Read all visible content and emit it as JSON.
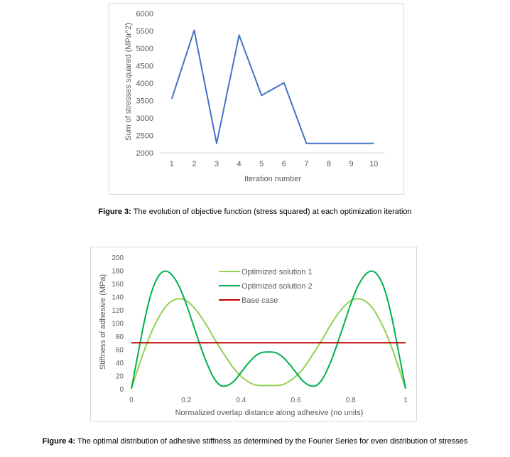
{
  "figure3": {
    "caption_label": "Figure 3:",
    "caption_text": " The evolution of objective function (stress squared) at each optimization iteration",
    "chart_data": {
      "type": "line",
      "title": "",
      "xlabel": "Iteration number",
      "ylabel": "Sum of stresses squared (MPa^2)",
      "categories": [
        "1",
        "2",
        "3",
        "4",
        "5",
        "6",
        "7",
        "8",
        "9",
        "10"
      ],
      "x": [
        1,
        2,
        3,
        4,
        5,
        6,
        7,
        8,
        9,
        10
      ],
      "values": [
        3550,
        5520,
        2270,
        5380,
        3650,
        4010,
        2270,
        2270,
        2270,
        2270
      ],
      "ylim": [
        2000,
        6000
      ],
      "yticks": [
        "2000",
        "2500",
        "3000",
        "3500",
        "4000",
        "4500",
        "5000",
        "5500",
        "6000"
      ],
      "grid": false,
      "color": "#4472c4"
    }
  },
  "figure4": {
    "caption_label": "Figure 4:",
    "caption_text": " The optimal distribution of adhesive stiffness as determined by the Fourier Series for even distribution of stresses",
    "chart_data": {
      "type": "line",
      "title": "",
      "xlabel": "Normalized overlap distance along adhesive (no units)",
      "ylabel": "Stiffness of adhesive (MPa)",
      "xlim": [
        0,
        1
      ],
      "ylim": [
        0,
        200
      ],
      "xticks": [
        "0",
        "0.2",
        "0.4",
        "0.6",
        "0.8",
        "1"
      ],
      "yticks": [
        "0",
        "20",
        "40",
        "60",
        "80",
        "100",
        "120",
        "140",
        "160",
        "180",
        "200"
      ],
      "legend_position": "top-right",
      "grid": false,
      "series": [
        {
          "name": "Optimized solution 1",
          "color": "#92d050",
          "x": [
            0,
            0.025,
            0.05,
            0.075,
            0.1,
            0.125,
            0.15,
            0.175,
            0.2,
            0.225,
            0.25,
            0.275,
            0.3,
            0.325,
            0.35,
            0.375,
            0.4,
            0.425,
            0.45,
            0.475,
            0.5,
            0.525,
            0.55,
            0.575,
            0.6,
            0.625,
            0.65,
            0.675,
            0.7,
            0.725,
            0.75,
            0.775,
            0.8,
            0.825,
            0.85,
            0.875,
            0.9,
            0.925,
            0.95,
            0.975,
            1
          ],
          "y": [
            0,
            32,
            62,
            88,
            109,
            125,
            134,
            137,
            134,
            125,
            112,
            96,
            78,
            61,
            45,
            30,
            19,
            11,
            6,
            5,
            5,
            5,
            6,
            11,
            19,
            30,
            45,
            61,
            78,
            96,
            112,
            125,
            134,
            137,
            134,
            125,
            109,
            88,
            62,
            32,
            0
          ]
        },
        {
          "name": "Optimized solution 2",
          "color": "#00b050",
          "x": [
            0,
            0.025,
            0.05,
            0.075,
            0.1,
            0.125,
            0.15,
            0.175,
            0.2,
            0.225,
            0.25,
            0.275,
            0.3,
            0.325,
            0.35,
            0.375,
            0.4,
            0.425,
            0.45,
            0.475,
            0.5,
            0.525,
            0.55,
            0.575,
            0.6,
            0.625,
            0.65,
            0.675,
            0.7,
            0.725,
            0.75,
            0.775,
            0.8,
            0.825,
            0.85,
            0.875,
            0.9,
            0.925,
            0.95,
            0.975,
            1
          ],
          "y": [
            0,
            55,
            108,
            149,
            172,
            179,
            172,
            155,
            129,
            98,
            67,
            39,
            17,
            5,
            5,
            12,
            25,
            38,
            49,
            55,
            56,
            55,
            49,
            38,
            25,
            12,
            5,
            5,
            17,
            39,
            67,
            98,
            129,
            155,
            172,
            179,
            172,
            149,
            108,
            55,
            0
          ]
        },
        {
          "name": "Base case",
          "color": "#c00000",
          "x": [
            0,
            1
          ],
          "y": [
            70,
            70
          ]
        }
      ]
    }
  }
}
